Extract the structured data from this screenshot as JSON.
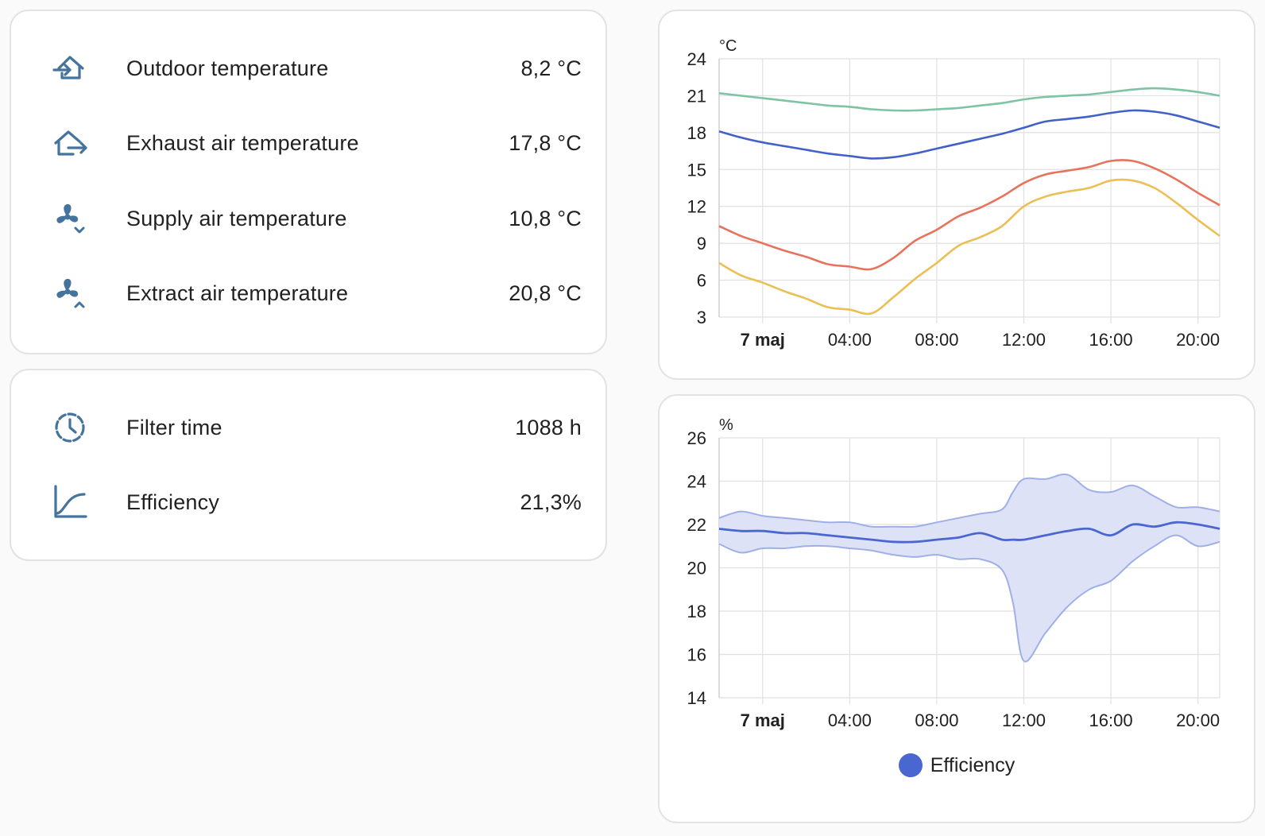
{
  "sensors": [
    {
      "name": "Outdoor temperature",
      "value": "8,2 °C",
      "icon": "home-import-icon"
    },
    {
      "name": "Exhaust air temperature",
      "value": "17,8 °C",
      "icon": "home-export-icon"
    },
    {
      "name": "Supply air temperature",
      "value": "10,8 °C",
      "icon": "fan-chevron-down-icon"
    },
    {
      "name": "Extract air temperature",
      "value": "20,8 °C",
      "icon": "fan-chevron-up-icon"
    }
  ],
  "stats": [
    {
      "name": "Filter time",
      "value": "1088 h",
      "icon": "timer-outline-icon"
    },
    {
      "name": "Efficiency",
      "value": "21,3%",
      "icon": "chart-bell-curve-icon"
    }
  ],
  "colors": {
    "icon": "#44739e",
    "card_border": "#e3e3e3",
    "green": "#7ec4a3",
    "blue": "#4161c6",
    "red": "#e8735c",
    "yellow": "#ecbf56",
    "efficiency": "#4a66d0",
    "efficiency_band": "#dde2f7"
  },
  "chart_data": [
    {
      "type": "line",
      "unit": "°C",
      "ylim": [
        3,
        24
      ],
      "yticks": [
        "3",
        "6",
        "9",
        "12",
        "15",
        "18",
        "21",
        "24"
      ],
      "xticks": [
        "7 maj",
        "04:00",
        "08:00",
        "12:00",
        "16:00",
        "20:00"
      ],
      "x_hours_range": [
        -2,
        21
      ],
      "x": [
        -2,
        -1,
        0,
        1,
        2,
        3,
        4,
        5,
        6,
        7,
        8,
        9,
        10,
        11,
        12,
        13,
        14,
        15,
        16,
        17,
        18,
        19,
        20,
        21
      ],
      "series": [
        {
          "values": [
            21.2,
            21.0,
            20.8,
            20.6,
            20.4,
            20.2,
            20.1,
            19.9,
            19.8,
            19.8,
            19.9,
            20.0,
            20.2,
            20.4,
            20.7,
            20.9,
            21.0,
            21.1,
            21.3,
            21.5,
            21.6,
            21.5,
            21.3,
            21.0
          ],
          "color": "#7ec4a3"
        },
        {
          "values": [
            18.1,
            17.6,
            17.2,
            16.9,
            16.6,
            16.3,
            16.1,
            15.9,
            16.0,
            16.3,
            16.7,
            17.1,
            17.5,
            17.9,
            18.4,
            18.9,
            19.1,
            19.3,
            19.6,
            19.8,
            19.7,
            19.4,
            18.9,
            18.4
          ],
          "color": "#4161c6"
        },
        {
          "values": [
            10.4,
            9.6,
            9.0,
            8.4,
            7.9,
            7.3,
            7.1,
            6.9,
            7.8,
            9.2,
            10.1,
            11.2,
            11.9,
            12.8,
            13.9,
            14.6,
            14.9,
            15.2,
            15.7,
            15.7,
            15.1,
            14.2,
            13.1,
            12.1
          ],
          "color": "#e8735c"
        },
        {
          "values": [
            7.4,
            6.4,
            5.8,
            5.1,
            4.5,
            3.8,
            3.6,
            3.3,
            4.6,
            6.1,
            7.4,
            8.8,
            9.5,
            10.4,
            12.0,
            12.8,
            13.2,
            13.5,
            14.1,
            14.1,
            13.5,
            12.3,
            10.9,
            9.6
          ],
          "color": "#ecbf56"
        }
      ]
    },
    {
      "type": "area",
      "unit": "%",
      "ylim": [
        14,
        26
      ],
      "yticks": [
        "14",
        "16",
        "18",
        "20",
        "22",
        "24",
        "26"
      ],
      "xticks": [
        "7 maj",
        "04:00",
        "08:00",
        "12:00",
        "16:00",
        "20:00"
      ],
      "x_hours_range": [
        -2,
        21
      ],
      "x": [
        -2,
        -1,
        0,
        1,
        2,
        3,
        4,
        5,
        6,
        7,
        8,
        9,
        10,
        11,
        11.5,
        12,
        13,
        14,
        15,
        16,
        17,
        18,
        19,
        20,
        21
      ],
      "series": [
        {
          "name": "Efficiency",
          "color": "#4a66d0",
          "mean": [
            21.8,
            21.7,
            21.7,
            21.6,
            21.6,
            21.5,
            21.4,
            21.3,
            21.2,
            21.2,
            21.3,
            21.4,
            21.6,
            21.3,
            21.3,
            21.3,
            21.5,
            21.7,
            21.8,
            21.5,
            22.0,
            21.9,
            22.1,
            22.0,
            21.8
          ],
          "max": [
            22.3,
            22.6,
            22.4,
            22.3,
            22.2,
            22.1,
            22.1,
            21.9,
            21.9,
            21.9,
            22.1,
            22.3,
            22.5,
            22.7,
            23.5,
            24.1,
            24.1,
            24.3,
            23.6,
            23.5,
            23.8,
            23.3,
            22.8,
            22.8,
            22.6
          ],
          "min": [
            21.1,
            20.7,
            20.9,
            20.9,
            21.0,
            21.0,
            20.9,
            20.8,
            20.6,
            20.5,
            20.6,
            20.4,
            20.4,
            19.9,
            18.4,
            15.7,
            17.0,
            18.2,
            19.0,
            19.4,
            20.3,
            21.0,
            21.5,
            21.0,
            21.2
          ]
        }
      ],
      "legend": [
        "Efficiency"
      ]
    }
  ]
}
